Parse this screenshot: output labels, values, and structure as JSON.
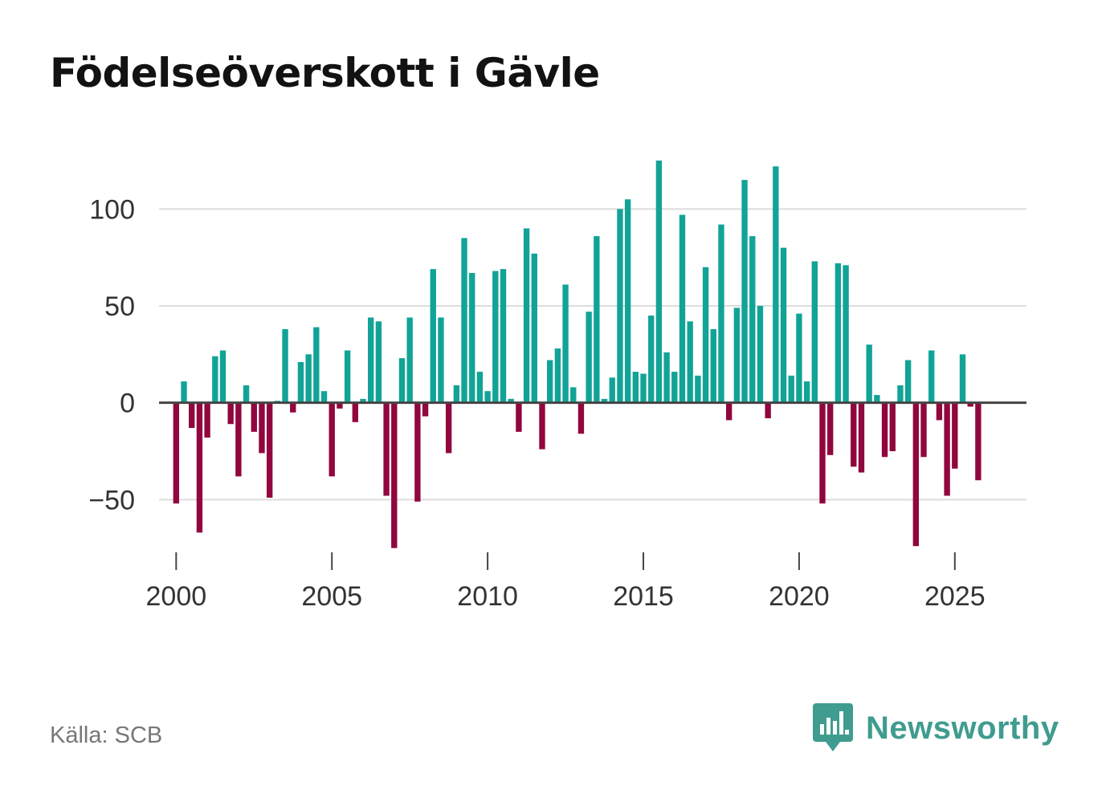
{
  "title": "Födelseöverskott i Gävle",
  "source": "Källa: SCB",
  "brand": {
    "name": "Newsworthy",
    "icon": "newsworthy-logo-icon"
  },
  "colors": {
    "positive": "#12a397",
    "negative": "#91063e",
    "grid": "#dddddd",
    "zero": "#444444",
    "brand": "#3f9c8e"
  },
  "chart_data": {
    "type": "bar",
    "title": "Födelseöverskott i Gävle",
    "xlabel": "",
    "ylabel": "",
    "frequency": "quarterly",
    "start": [
      2000,
      1
    ],
    "x_ticks": [
      "2000",
      "2005",
      "2010",
      "2015",
      "2020",
      "2025"
    ],
    "y_ticks": [
      100,
      50,
      0,
      -50
    ],
    "y_tick_labels": [
      "100",
      "50",
      "0",
      "−50"
    ],
    "ylim": [
      -83,
      125
    ],
    "xlim": [
      1999.45,
      2027.3
    ],
    "values": [
      -52,
      11,
      -13,
      -67,
      -18,
      24,
      27,
      -11,
      -38,
      9,
      -15,
      -26,
      -49,
      1,
      38,
      -5,
      21,
      25,
      39,
      6,
      -38,
      -3,
      27,
      -10,
      2,
      44,
      42,
      -48,
      -75,
      23,
      44,
      -51,
      -7,
      69,
      44,
      -26,
      9,
      85,
      67,
      16,
      6,
      68,
      69,
      2,
      -15,
      90,
      77,
      -24,
      22,
      28,
      61,
      8,
      -16,
      47,
      86,
      2,
      13,
      100,
      105,
      16,
      15,
      45,
      125,
      26,
      16,
      97,
      42,
      14,
      70,
      38,
      92,
      -9,
      49,
      115,
      86,
      50,
      -8,
      122,
      80,
      14,
      46,
      11,
      73,
      -52,
      -27,
      72,
      71,
      -33,
      -36,
      30,
      4,
      -28,
      -25,
      9,
      22,
      -74,
      -28,
      27,
      -9,
      -48,
      -34,
      25,
      -2,
      -40
    ]
  }
}
